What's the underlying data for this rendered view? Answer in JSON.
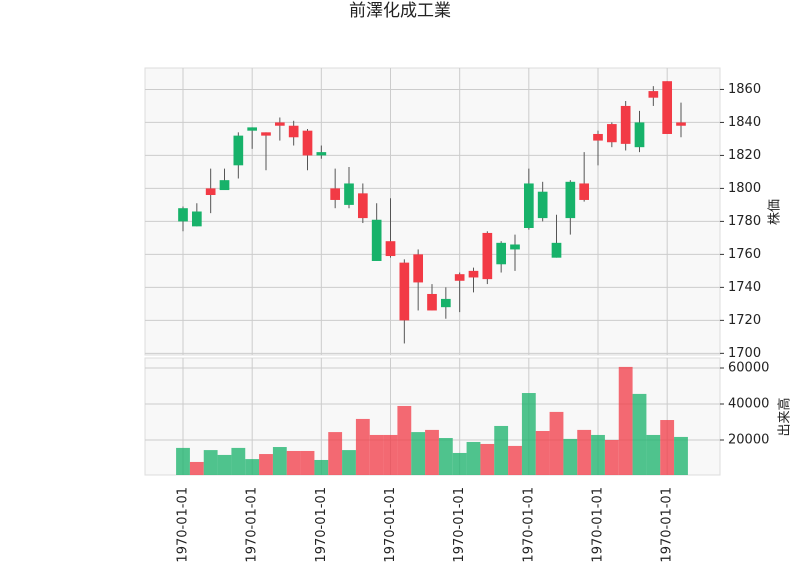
{
  "chart_data": {
    "type": "candlestick",
    "title": "前澤化成工業",
    "categories": [
      "1970-01-01",
      null,
      null,
      null,
      null,
      "1970-01-01",
      null,
      null,
      null,
      null,
      "1970-01-01",
      null,
      null,
      null,
      null,
      "1970-01-01",
      null,
      null,
      null,
      null,
      "1970-01-01",
      null,
      null,
      null,
      null,
      "1970-01-01",
      null,
      null,
      null,
      null,
      "1970-01-01",
      null,
      null,
      null,
      null,
      "1970-01-01",
      null
    ],
    "open": [
      1780,
      1777,
      1800,
      1799,
      1814,
      1835,
      1834,
      1840,
      1838,
      1835,
      1820,
      1800,
      1790,
      1797,
      1756,
      1768,
      1755,
      1760,
      1736,
      1728,
      1748,
      1750,
      1773,
      1754,
      1763,
      1776,
      1782,
      1758,
      1782,
      1803,
      1833,
      1839,
      1850,
      1825,
      1859,
      1865,
      1840
    ],
    "high": [
      1789,
      1791,
      1812,
      1812,
      1834,
      1837,
      1834,
      1843,
      1841,
      1836,
      1826,
      1812,
      1813,
      1803,
      1791,
      1794,
      1757,
      1763,
      1742,
      1740,
      1749,
      1752,
      1774,
      1768,
      1772,
      1812,
      1804,
      1784,
      1805,
      1822,
      1835,
      1840,
      1853,
      1847,
      1862,
      1865,
      1852
    ],
    "low": [
      1774,
      1777,
      1785,
      1799,
      1806,
      1824,
      1811,
      1829,
      1826,
      1811,
      1818,
      1788,
      1788,
      1779,
      1756,
      1758,
      1706,
      1726,
      1726,
      1721,
      1725,
      1737,
      1742,
      1749,
      1750,
      1775,
      1780,
      1758,
      1772,
      1792,
      1814,
      1825,
      1823,
      1822,
      1850,
      1833,
      1831
    ],
    "close": [
      1788,
      1786,
      1796,
      1805,
      1832,
      1837,
      1832,
      1838,
      1831,
      1820,
      1822,
      1793,
      1803,
      1782,
      1781,
      1759,
      1720,
      1743,
      1726,
      1733,
      1744,
      1746,
      1745,
      1767,
      1766,
      1803,
      1798,
      1767,
      1804,
      1793,
      1829,
      1828,
      1827,
      1840,
      1855,
      1833,
      1838
    ],
    "volume": [
      15600,
      7800,
      14400,
      11700,
      15600,
      9400,
      12200,
      16100,
      13900,
      13900,
      8900,
      24400,
      14400,
      31700,
      22800,
      22800,
      38900,
      24400,
      25600,
      21100,
      12800,
      18900,
      17800,
      27800,
      16700,
      46100,
      25000,
      35600,
      20600,
      25600,
      22800,
      20000,
      60600,
      45600,
      22800,
      31100,
      21700
    ],
    "up_color": "#17b26a",
    "down_color": "#f23a45",
    "ylabel": "株価",
    "ylim": [
      1699,
      1873
    ],
    "yticks": [
      1700,
      1720,
      1740,
      1760,
      1780,
      1800,
      1820,
      1840,
      1860
    ],
    "y2label": "出来高",
    "y2lim": [
      556,
      65556
    ],
    "y2ticks": [
      20000,
      40000,
      60000
    ],
    "grid": true
  }
}
